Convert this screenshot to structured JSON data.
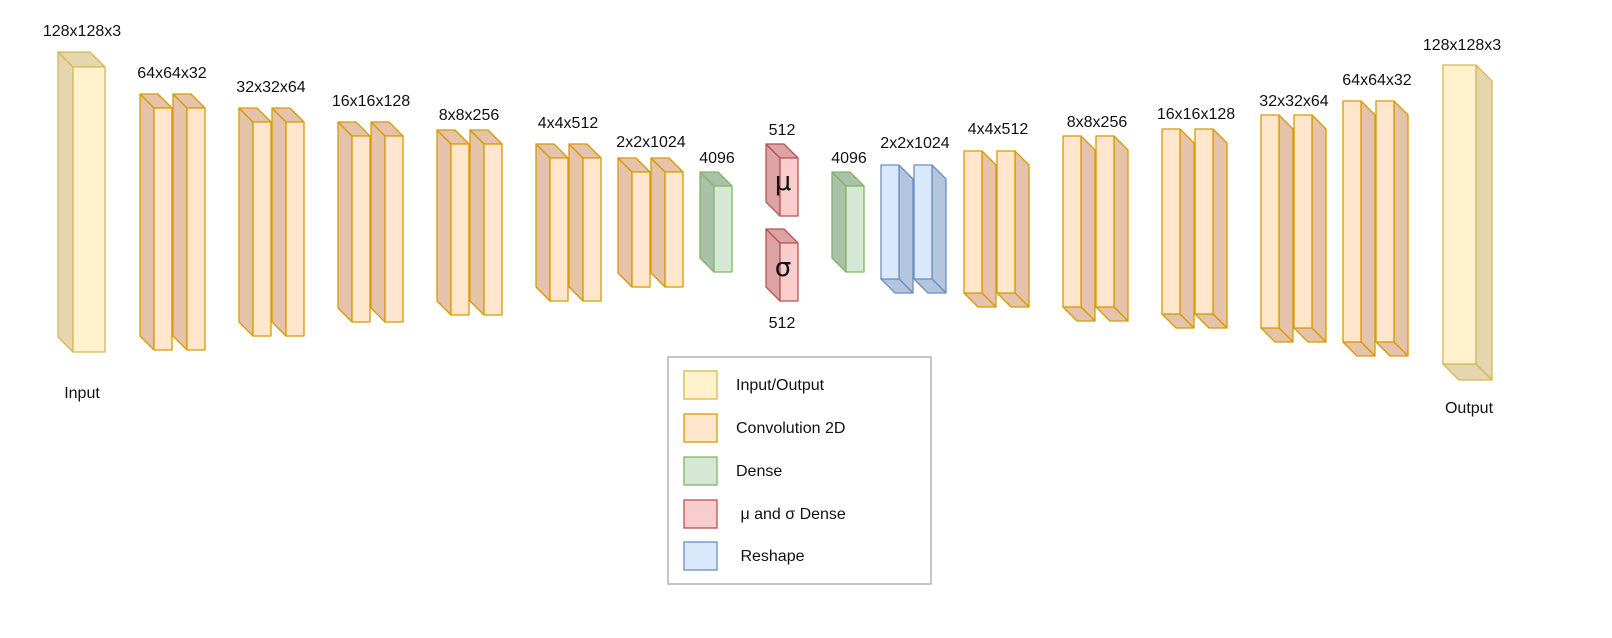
{
  "diagram": {
    "input_label": "Input",
    "output_label": "Output",
    "encoder_layers": [
      {
        "dim": "128x128x3",
        "type": "io"
      },
      {
        "dim": "64x64x32",
        "type": "conv"
      },
      {
        "dim": "32x32x64",
        "type": "conv"
      },
      {
        "dim": "16x16x128",
        "type": "conv"
      },
      {
        "dim": "8x8x256",
        "type": "conv"
      },
      {
        "dim": "4x4x512",
        "type": "conv"
      },
      {
        "dim": "2x2x1024",
        "type": "conv"
      },
      {
        "dim": "4096",
        "type": "dense"
      }
    ],
    "latent": {
      "mu": {
        "symbol": "μ",
        "dim": "512"
      },
      "sigma": {
        "symbol": "σ",
        "dim": "512"
      }
    },
    "decoder_layers": [
      {
        "dim": "4096",
        "type": "dense"
      },
      {
        "dim": "2x2x1024",
        "type": "reshape"
      },
      {
        "dim": "4x4x512",
        "type": "conv"
      },
      {
        "dim": "8x8x256",
        "type": "conv"
      },
      {
        "dim": "16x16x128",
        "type": "conv"
      },
      {
        "dim": "32x32x64",
        "type": "conv"
      },
      {
        "dim": "64x64x32",
        "type": "conv"
      },
      {
        "dim": "128x128x3",
        "type": "io"
      }
    ]
  },
  "legend": {
    "items": [
      {
        "label": "Input/Output",
        "type": "io"
      },
      {
        "label": "Convolution 2D",
        "type": "conv"
      },
      {
        "label": "Dense",
        "type": "dense"
      },
      {
        "label": " μ and σ Dense",
        "type": "musigma"
      },
      {
        "label": " Reshape",
        "type": "reshape"
      }
    ]
  },
  "colors": {
    "io": {
      "front": "#fff2cc",
      "side": "#e6d6b0",
      "stroke": "#d6b656"
    },
    "conv": {
      "front": "#ffe6cc",
      "side": "#e5c3ab",
      "stroke": "#d79b00"
    },
    "dense": {
      "front": "#d5e8d4",
      "side": "#a9c2a7",
      "stroke": "#82b366"
    },
    "musigma": {
      "front": "#f8cecc",
      "side": "#dba3a4",
      "stroke": "#b85450"
    },
    "reshape": {
      "front": "#dae8fc",
      "side": "#b3c5dd",
      "stroke": "#6c8ebf"
    }
  }
}
